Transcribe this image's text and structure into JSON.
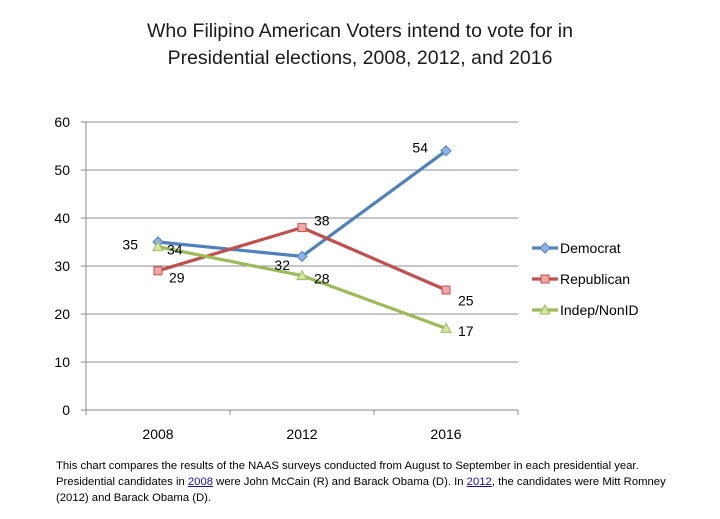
{
  "chart_data": {
    "type": "line",
    "title_lines": [
      "Who Filipino American Voters intend to vote for in",
      "Presidential elections, 2008, 2012, and 2016"
    ],
    "categories": [
      "2008",
      "2012",
      "2016"
    ],
    "ylim": [
      0,
      60
    ],
    "yticks": [
      0,
      10,
      20,
      30,
      40,
      50,
      60
    ],
    "grid": true,
    "legend_position": "right",
    "series": [
      {
        "name": "Democrat",
        "values": [
          35,
          32,
          54
        ],
        "color": "#4f81bd",
        "marker": "diamond",
        "marker_fill": "#8fb4e3",
        "label_dx": [
          -20,
          -12,
          -18
        ],
        "label_dy": [
          0,
          10,
          -2
        ]
      },
      {
        "name": "Republican",
        "values": [
          29,
          38,
          25
        ],
        "color": "#c0504d",
        "marker": "square",
        "marker_fill": "#f1a9a7",
        "label_dx": [
          11,
          12,
          12
        ],
        "label_dy": [
          8,
          -6,
          12
        ]
      },
      {
        "name": "Indep/NonID",
        "values": [
          34,
          28,
          17
        ],
        "color": "#9bbb59",
        "marker": "triangle",
        "marker_fill": "#d4e6a4",
        "label_dx": [
          9,
          12,
          12
        ],
        "label_dy": [
          4,
          4,
          4
        ]
      }
    ]
  },
  "caption": {
    "part1": "This chart compares the results of the NAAS surveys conducted from August to September in each presidential year. Presidential candidates in ",
    "link1": "2008",
    "part2": " were John McCain (R) and Barack Obama (D). In ",
    "link2": "2012",
    "part3": ", the candidates were Mitt Romney (2012) and Barack Obama (D)."
  }
}
